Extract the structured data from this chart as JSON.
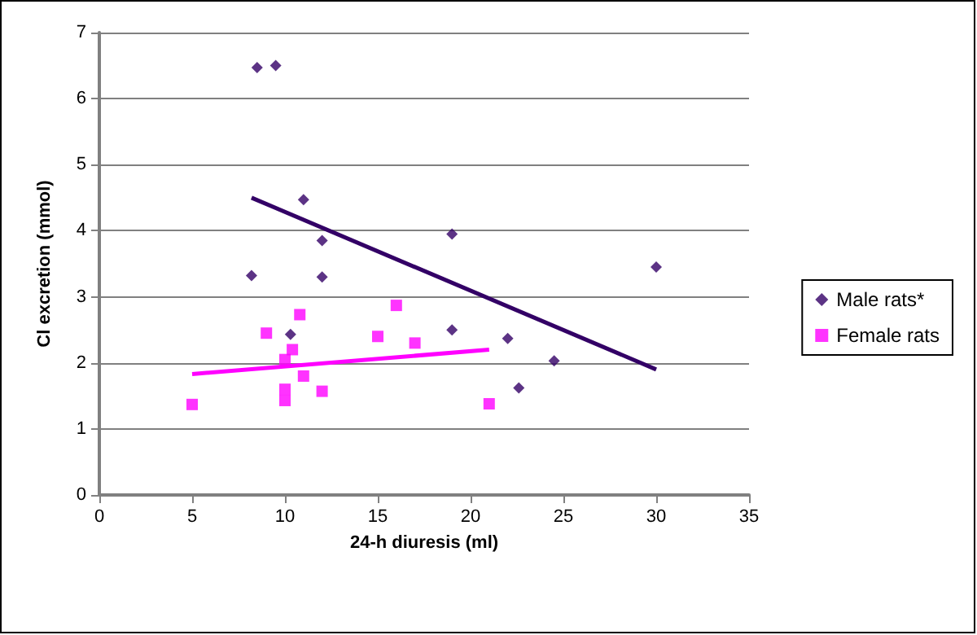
{
  "chart_data": {
    "type": "scatter",
    "xlabel": "24-h diuresis (ml)",
    "ylabel": "Cl excretion (mmol)",
    "xlim": [
      0,
      35
    ],
    "xticks": [
      0,
      5,
      10,
      15,
      20,
      25,
      30,
      35
    ],
    "ylim": [
      0,
      7
    ],
    "yticks": [
      0,
      1,
      2,
      3,
      4,
      5,
      6,
      7
    ],
    "grid": "y",
    "legend": "right",
    "series": [
      {
        "name": "Male rats*",
        "color": "#330066",
        "marker": "diamond",
        "x": [
          8.5,
          9.5,
          8.2,
          11,
          12,
          12,
          10.3,
          19,
          19,
          22,
          24.5,
          22.6,
          30
        ],
        "values": [
          6.47,
          6.5,
          3.32,
          4.47,
          3.85,
          3.3,
          2.43,
          3.95,
          2.5,
          2.37,
          2.03,
          1.62,
          3.45
        ]
      },
      {
        "name": "Female rats",
        "color": "#ff00ff",
        "marker": "square",
        "x": [
          5,
          9,
          10,
          10,
          10,
          10.4,
          10.8,
          11,
          12,
          15,
          16,
          17,
          21
        ],
        "values": [
          1.37,
          2.45,
          2.05,
          1.6,
          1.43,
          2.2,
          2.73,
          1.8,
          1.57,
          2.4,
          2.87,
          2.3,
          1.38
        ]
      },
      {
        "type": "line",
        "color": "#330066",
        "marker": "none",
        "x": [
          8.2,
          30
        ],
        "values": [
          4.5,
          1.9
        ]
      },
      {
        "type": "line",
        "color": "#ff00ff",
        "marker": "none",
        "x": [
          5,
          21
        ],
        "values": [
          1.83,
          2.2
        ]
      }
    ]
  }
}
